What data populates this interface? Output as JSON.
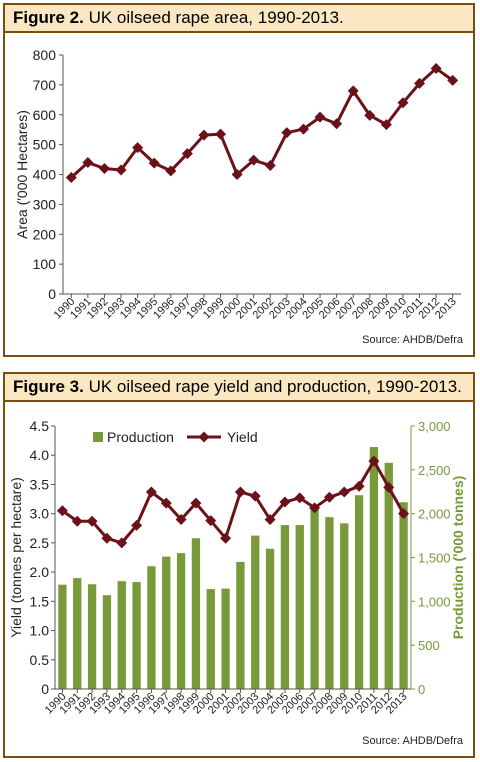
{
  "colors": {
    "line": "#6b1219",
    "bar": "#789a3a",
    "axis_right": "#789a3a",
    "frame": "#7a4c10",
    "title_bg": "#fbe7c2"
  },
  "figure2": {
    "label": "Figure 2.",
    "title": "UK oilseed rape area, 1990-2013.",
    "source": "Source: AHDB/Defra",
    "chart_data": {
      "type": "line",
      "ylabel": "Area ('000 Hectares)",
      "ylim": [
        0,
        800
      ],
      "yticks": [
        "0",
        "100",
        "200",
        "300",
        "400",
        "500",
        "600",
        "700",
        "800"
      ],
      "categories": [
        "1990",
        "1991",
        "1992",
        "1993",
        "1994",
        "1995",
        "1996",
        "1997",
        "1998",
        "1999",
        "2000",
        "2001",
        "2002",
        "2003",
        "2004",
        "2005",
        "2006",
        "2007",
        "2008",
        "2009",
        "2010",
        "2011",
        "2012",
        "2013"
      ],
      "values": [
        390,
        440,
        420,
        415,
        490,
        438,
        412,
        470,
        532,
        535,
        400,
        448,
        430,
        540,
        552,
        592,
        570,
        680,
        598,
        567,
        640,
        705,
        755,
        715
      ],
      "grid": false,
      "marker": "diamond"
    }
  },
  "figure3": {
    "label": "Figure 3.",
    "title": "UK oilseed rape yield and production, 1990-2013.",
    "source": "Source: AHDB/Defra",
    "chart_data": {
      "type": "bar",
      "categories": [
        "1990",
        "1991",
        "1992",
        "1993",
        "1994",
        "1995",
        "1996",
        "1997",
        "1998",
        "1999",
        "2000",
        "2001",
        "2002",
        "2003",
        "2004",
        "2005",
        "2006",
        "2007",
        "2008",
        "2009",
        "2010",
        "2011",
        "2012",
        "2013"
      ],
      "ylabel": "Yield (tonnes per hectare)",
      "ylim": [
        0,
        4.5
      ],
      "yticks": [
        "0",
        "0.5",
        "1.0",
        "1.5",
        "2.0",
        "2.5",
        "3.0",
        "3.5",
        "4.0",
        "4.5"
      ],
      "y2label": "Production ('000 tonnes)",
      "y2lim": [
        0,
        3000
      ],
      "y2ticks": [
        "0",
        "500",
        "1,000",
        "1,500",
        "2,000",
        "2,500",
        "3,000"
      ],
      "series": [
        {
          "name": "Production",
          "type": "bar",
          "axis": "right",
          "values": [
            1190,
            1265,
            1195,
            1070,
            1230,
            1220,
            1400,
            1510,
            1550,
            1720,
            1140,
            1145,
            1450,
            1750,
            1600,
            1870,
            1870,
            2050,
            1960,
            1890,
            2210,
            2760,
            2580,
            2130
          ]
        },
        {
          "name": "Yield",
          "type": "line",
          "axis": "left",
          "marker": "diamond",
          "values": [
            3.05,
            2.87,
            2.87,
            2.58,
            2.5,
            2.8,
            3.37,
            3.18,
            2.9,
            3.18,
            2.88,
            2.58,
            3.37,
            3.3,
            2.9,
            3.2,
            3.27,
            3.1,
            3.28,
            3.37,
            3.47,
            3.9,
            3.45,
            3.0
          ]
        }
      ],
      "legend": "top-left",
      "grid": false
    }
  }
}
